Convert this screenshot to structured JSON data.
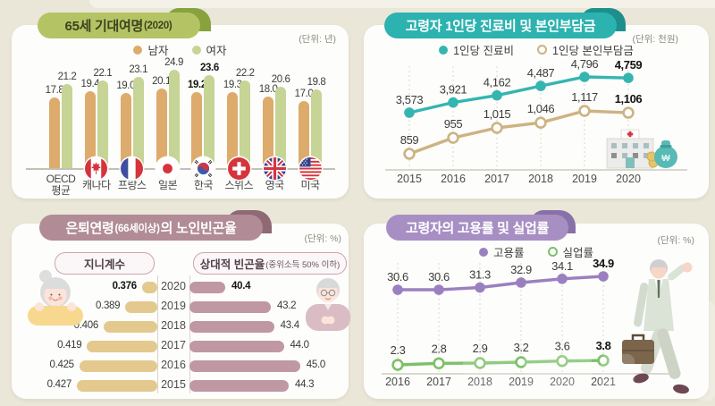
{
  "chart_data": [
    {
      "id": "life-expectancy-at-65",
      "type": "bar",
      "title_parts": [
        {
          "text": "65세 기대여명"
        },
        {
          "text": "(2020)",
          "small": true
        }
      ],
      "unit": "(단위: 년)",
      "accent": "#b4c464",
      "accent_dark": "#88a23e",
      "categories": [
        [
          "OECD",
          "평균"
        ],
        "캐나다",
        "프랑스",
        "일본",
        "한국",
        "스위스",
        "영국",
        "미국"
      ],
      "flags": [
        null,
        "canada",
        "france",
        "japan",
        "korea",
        "switzerland",
        "uk",
        "usa"
      ],
      "bold_index": 4,
      "ylim": [
        0,
        25
      ],
      "series": [
        {
          "name": "남자",
          "color": "#ddab6c",
          "values": [
            17.8,
            19.4,
            19.0,
            20.1,
            19.2,
            19.3,
            18.0,
            17.0
          ]
        },
        {
          "name": "여자",
          "color": "#c6d495",
          "values": [
            21.2,
            22.1,
            23.1,
            24.9,
            23.6,
            22.2,
            20.6,
            19.8
          ]
        }
      ]
    },
    {
      "id": "per-capita-medical-expense",
      "type": "line",
      "title_parts": [
        {
          "text": "고령자 1인당 진료비 및 본인부담금"
        }
      ],
      "unit": "(단위: 천원)",
      "accent": "#2cb2af",
      "accent_dark": "#1d8f8d",
      "x": [
        "2015",
        "2016",
        "2017",
        "2018",
        "2019",
        "2020"
      ],
      "bold_index": 5,
      "series": [
        {
          "name": "1인당 진료비",
          "color": "#35b5b1",
          "marker": "filled",
          "values": [
            3573,
            3921,
            4162,
            4487,
            4796,
            4759
          ],
          "labels": [
            "3,573",
            "3,921",
            "4,162",
            "4,487",
            "4,796",
            "4,759"
          ]
        },
        {
          "name": "1인당 본인부담금",
          "color": "#cdb383",
          "marker": "open",
          "values": [
            859,
            955,
            1015,
            1046,
            1117,
            1106
          ],
          "labels": [
            "859",
            "955",
            "1,015",
            "1,046",
            "1,117",
            "1,106"
          ]
        }
      ]
    },
    {
      "id": "elderly-poverty-rate",
      "type": "bar",
      "title_parts": [
        {
          "text": "은퇴연령"
        },
        {
          "text": "(66세이상)",
          "small": true
        },
        {
          "text": "의 노인빈곤율"
        }
      ],
      "unit": "(단위: %)",
      "accent": "#b18c96",
      "accent_dark": "#8f6974",
      "years": [
        "2020",
        "2019",
        "2018",
        "2017",
        "2016",
        "2015"
      ],
      "bold_index": 0,
      "left": {
        "label": "지니계수",
        "color": "#e3c98e",
        "values": [
          0.376,
          0.389,
          0.406,
          0.419,
          0.425,
          0.427
        ],
        "labels": [
          "0.376",
          "0.389",
          "0.406",
          "0.419",
          "0.425",
          "0.427"
        ]
      },
      "right": {
        "label": "상대적 빈곤율",
        "label_suffix": "(중위소득 50% 이하)",
        "color": "#bf98a3",
        "values": [
          40.4,
          43.2,
          43.4,
          44.0,
          45.0,
          44.3
        ],
        "labels": [
          "40.4",
          "43.2",
          "43.4",
          "44.0",
          "45.0",
          "44.3"
        ]
      }
    },
    {
      "id": "employment-unemployment-rate",
      "type": "line",
      "title_parts": [
        {
          "text": "고령자의 고용률 및 실업률"
        }
      ],
      "unit": "(단위: %)",
      "accent": "#a78fc4",
      "accent_dark": "#8871a8",
      "x": [
        "2016",
        "2017",
        "2018",
        "2019",
        "2020",
        "2021"
      ],
      "bold_index": 5,
      "series": [
        {
          "name": "고용률",
          "color": "#9b80c0",
          "marker": "filled",
          "values": [
            30.6,
            30.6,
            31.3,
            32.9,
            34.1,
            34.9
          ],
          "labels": [
            "30.6",
            "30.6",
            "31.3",
            "32.9",
            "34.1",
            "34.9"
          ]
        },
        {
          "name": "실업률",
          "color": "#7cc168",
          "marker": "open",
          "values": [
            2.3,
            2.8,
            2.9,
            3.2,
            3.6,
            3.8
          ],
          "labels": [
            "2.3",
            "2.8",
            "2.9",
            "3.2",
            "3.6",
            "3.8"
          ]
        }
      ]
    }
  ]
}
